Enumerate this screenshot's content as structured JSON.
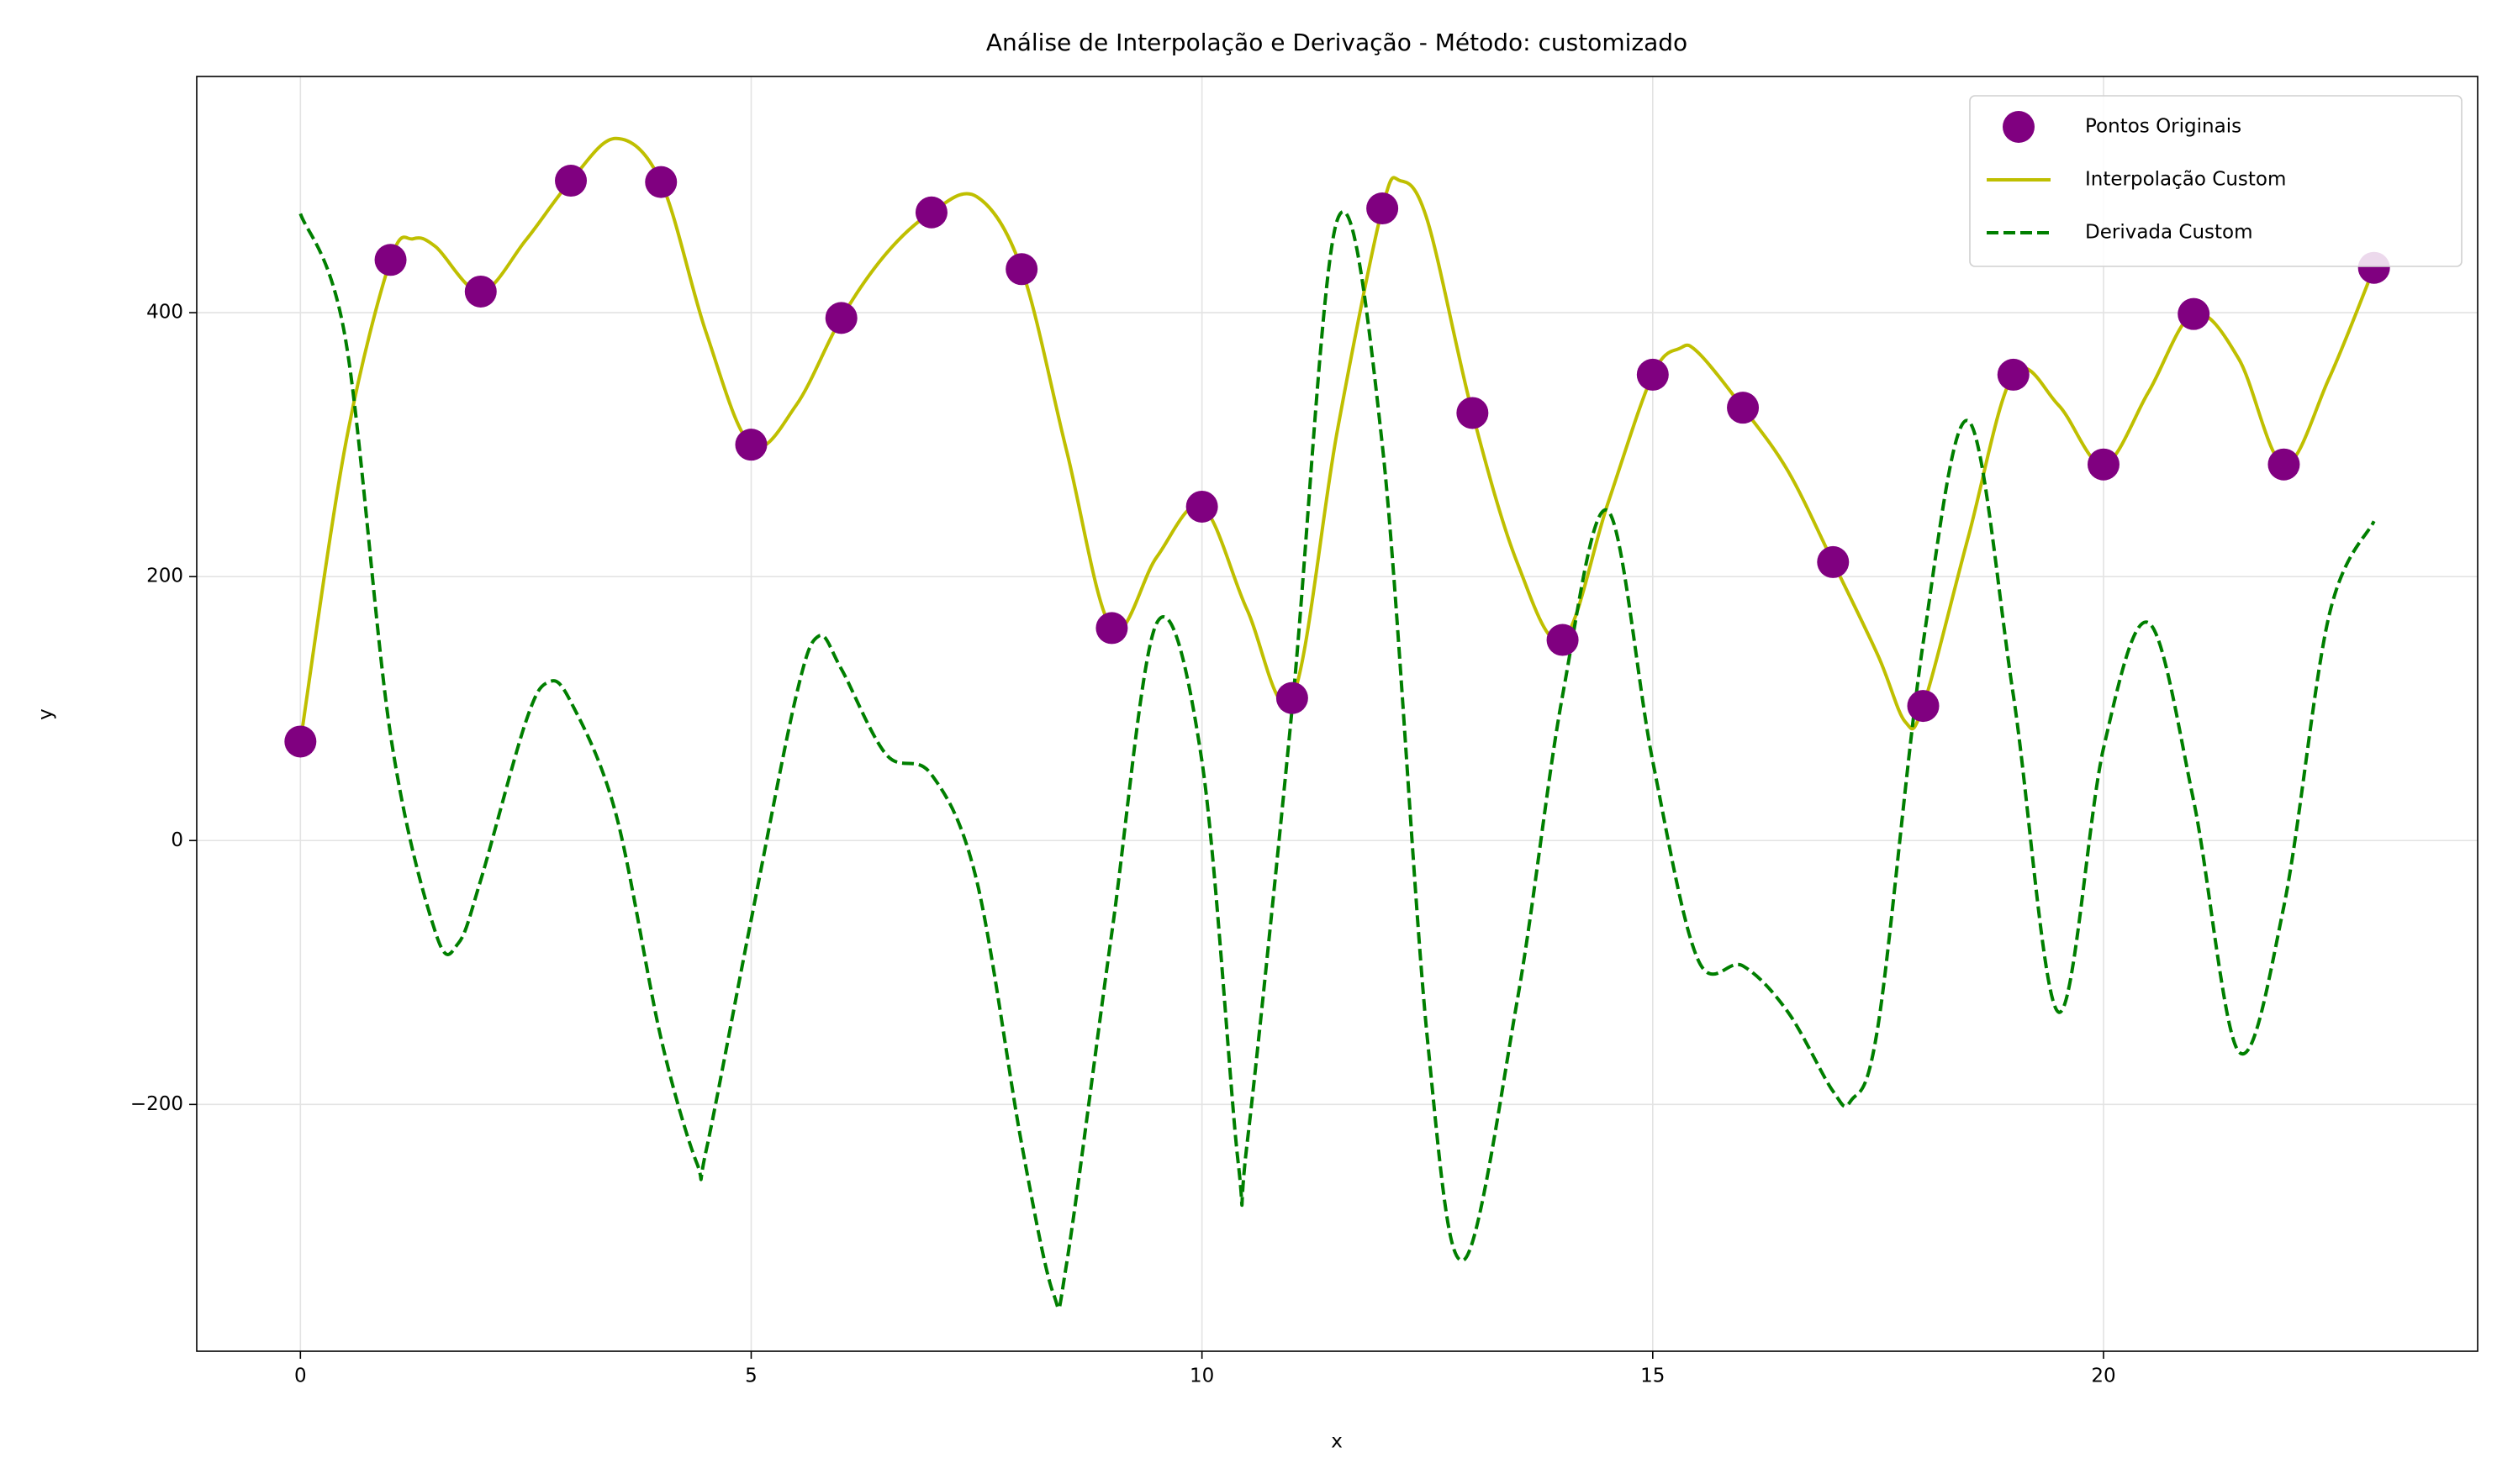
{
  "chart_data": {
    "type": "line",
    "title": "Análise de Interpolação e Derivação - Método: customizado",
    "x_label": "x",
    "y_label": "y",
    "xlim": [
      -1.15,
      24.15
    ],
    "ylim": [
      -387,
      579
    ],
    "xticks": [
      0,
      5,
      10,
      15,
      20
    ],
    "yticks": [
      {
        "value": -200,
        "label": "−200"
      },
      0,
      200,
      400
    ],
    "grid": true,
    "legend": "upper right",
    "series": [
      {
        "name": "Pontos Originais",
        "type": "scatter",
        "color": "#800080",
        "x": [
          0,
          1,
          2,
          3,
          4,
          5,
          6,
          7,
          8,
          9,
          10,
          11,
          12,
          13,
          14,
          15,
          16,
          17,
          18,
          19,
          20,
          21,
          22,
          23
        ],
        "values": [
          75,
          440,
          416,
          500,
          499,
          300,
          396,
          476,
          433,
          161,
          253,
          108,
          479,
          324,
          152,
          353,
          328,
          211,
          102,
          353,
          285,
          399,
          285,
          434
        ]
      },
      {
        "name": "Interpolação Custom",
        "type": "line",
        "color": "#bfbf00",
        "x": [
          0,
          0.5,
          1,
          1.25,
          1.5,
          2,
          2.5,
          3,
          3.5,
          4,
          4.5,
          5,
          5.5,
          6,
          6.5,
          7,
          7.5,
          8,
          8.5,
          9,
          9.5,
          10,
          10.5,
          11,
          11.5,
          12,
          12.2,
          12.5,
          13,
          13.5,
          14,
          14.5,
          15,
          15.3,
          15.5,
          16,
          16.5,
          17,
          17.5,
          17.8,
          18,
          18.5,
          19,
          19.5,
          20,
          20.5,
          21,
          21.5,
          22,
          22.5,
          23
        ],
        "values": [
          75,
          300,
          440,
          456,
          450,
          416,
          455,
          500,
          532,
          499,
          385,
          300,
          330,
          396,
          445,
          476,
          488,
          433,
          295,
          161,
          215,
          253,
          175,
          108,
          310,
          479,
          500,
          470,
          324,
          210,
          152,
          255,
          353,
          373,
          370,
          328,
          280,
          211,
          140,
          90,
          102,
          230,
          353,
          330,
          285,
          340,
          399,
          365,
          285,
          350,
          434
        ]
      },
      {
        "name": "Derivada Custom",
        "type": "line",
        "dash": true,
        "color": "#007f00",
        "x": [
          0,
          0.5,
          1,
          1.5,
          1.75,
          2,
          2.5,
          2.75,
          3,
          3.5,
          4,
          4.4,
          4.5,
          5,
          5.5,
          5.75,
          6,
          6.5,
          7,
          7.5,
          8,
          8.35,
          8.5,
          9,
          9.5,
          10,
          10.4,
          10.5,
          11,
          11.5,
          12,
          12.5,
          12.9,
          13.5,
          14,
          14.5,
          15,
          15.5,
          16,
          16.5,
          17,
          17.2,
          17.5,
          18,
          18.5,
          19,
          19.5,
          20,
          20.5,
          21,
          21.5,
          22,
          22.5,
          23
        ],
        "values": [
          475,
          380,
          80,
          -70,
          -78,
          -30,
          90,
          120,
          105,
          20,
          -150,
          -245,
          -235,
          -60,
          110,
          155,
          130,
          65,
          50,
          -30,
          -230,
          -343,
          -320,
          -70,
          165,
          60,
          -243,
          -230,
          100,
          470,
          300,
          -150,
          -318,
          -120,
          110,
          250,
          60,
          -90,
          -95,
          -130,
          -190,
          -197,
          -140,
          150,
          318,
          110,
          -130,
          70,
          165,
          30,
          -160,
          -50,
          170,
          242
        ]
      }
    ]
  }
}
